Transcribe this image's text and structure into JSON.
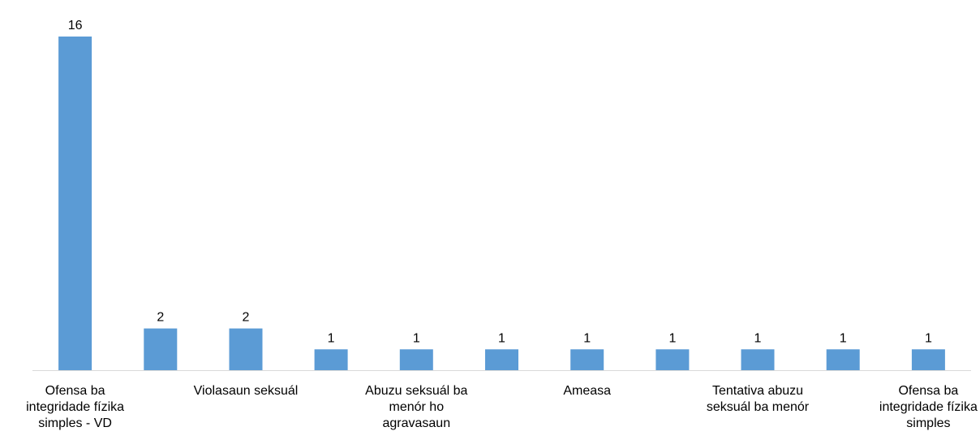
{
  "chart_data": {
    "type": "bar",
    "categories": [
      "Ofensa ba integridade fízika simples - VD",
      "",
      "Violasaun seksuál",
      "",
      "Abuzu seksuál ba menór ho agravasaun",
      "",
      "Ameasa",
      "",
      "Tentativa abuzu seksuál ba menór",
      "",
      "Ofensa ba integridade fízika simples"
    ],
    "category_label_lines": [
      [
        "Ofensa ba",
        "integridade fízika",
        "simples - VD"
      ],
      [],
      [
        "Violasaun seksuál"
      ],
      [],
      [
        "Abuzu seksuál ba",
        "menór ho",
        "agravasaun"
      ],
      [],
      [
        "Ameasa"
      ],
      [],
      [
        "Tentativa abuzu",
        "seksuál ba menór"
      ],
      [],
      [
        "Ofensa ba",
        "integridade fízika",
        "simples"
      ]
    ],
    "values": [
      16,
      2,
      2,
      1,
      1,
      1,
      1,
      1,
      1,
      1,
      1
    ],
    "data_labels": [
      "16",
      "2",
      "2",
      "1",
      "1",
      "1",
      "1",
      "1",
      "1",
      "1",
      "1"
    ],
    "ylim": [
      0,
      16
    ],
    "bar_color": "#5b9bd5",
    "axis_color": "#d9d9d9",
    "grid": false,
    "legend": "none"
  }
}
